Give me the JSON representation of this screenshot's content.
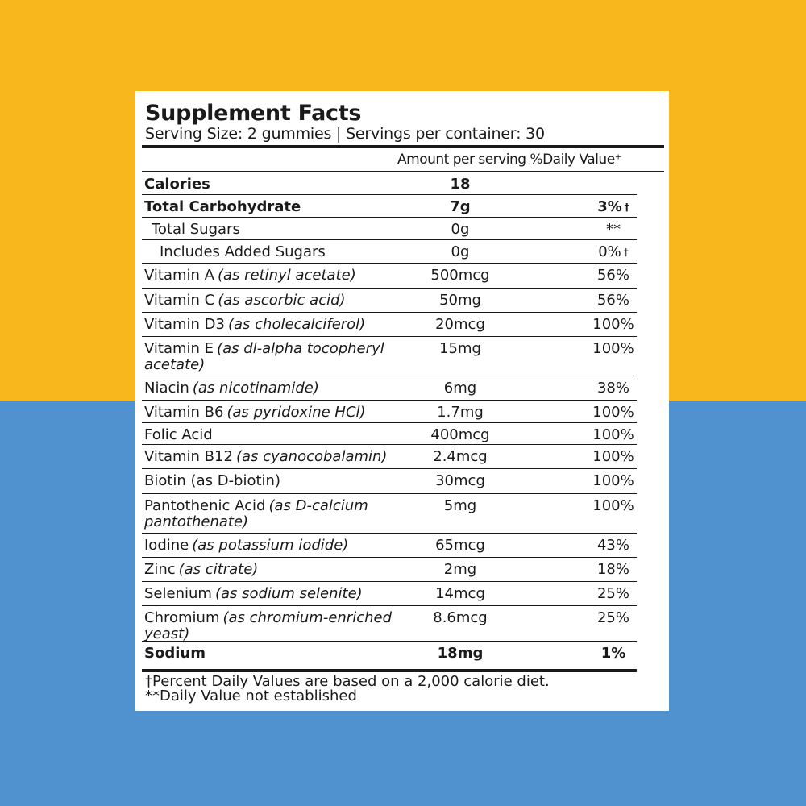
{
  "colors": {
    "top_background": "#F8B71C",
    "bottom_background": "#5092CF",
    "panel": "#FFFFFF",
    "text": "#1A1A1A"
  },
  "label": {
    "title": "Supplement Facts",
    "serving_line": "Serving Size: 2 gummies | Servings per container: 30",
    "column_header": "Amount per serving %Daily Value⁺",
    "rows": [
      {
        "name": "Calories",
        "note": "",
        "amount": "18",
        "dv": "",
        "dv_mark": "",
        "bold": true,
        "indent": 0,
        "lines": 1
      },
      {
        "name": "Total Carbohydrate",
        "note": "",
        "amount": "7g",
        "dv": "3%",
        "dv_mark": "†",
        "bold": true,
        "indent": 0,
        "lines": 1
      },
      {
        "name": "Total Sugars",
        "note": "",
        "amount": "0g",
        "dv": "**",
        "dv_mark": "",
        "bold": false,
        "indent": 1,
        "lines": 1
      },
      {
        "name": "Includes Added Sugars",
        "note": "",
        "amount": "0g",
        "dv": "0%",
        "dv_mark": "†",
        "bold": false,
        "indent": 2,
        "lines": 1
      },
      {
        "name": "Vitamin A",
        "note": "(as retinyl acetate)",
        "amount": "500mcg",
        "dv": "56%",
        "dv_mark": "",
        "bold": false,
        "indent": 0,
        "lines": 1
      },
      {
        "name": "Vitamin C",
        "note": "(as ascorbic acid)",
        "amount": "50mg",
        "dv": "56%",
        "dv_mark": "",
        "bold": false,
        "indent": 0,
        "lines": 1
      },
      {
        "name": "Vitamin D3",
        "note": "(as cholecalciferol)",
        "amount": "20mcg",
        "dv": "100%",
        "dv_mark": "",
        "bold": false,
        "indent": 0,
        "lines": 1
      },
      {
        "name": "Vitamin E",
        "note": "(as dl-alpha tocopheryl acetate)",
        "amount": "15mg",
        "dv": "100%",
        "dv_mark": "",
        "bold": false,
        "indent": 0,
        "lines": 2
      },
      {
        "name": "Niacin",
        "note": "(as nicotinamide)",
        "amount": "6mg",
        "dv": "38%",
        "dv_mark": "",
        "bold": false,
        "indent": 0,
        "lines": 1
      },
      {
        "name": "Vitamin B6",
        "note": "(as pyridoxine HCl)",
        "amount": "1.7mg",
        "dv": "100%",
        "dv_mark": "",
        "bold": false,
        "indent": 0,
        "lines": 1
      },
      {
        "name": "Folic Acid",
        "note": "",
        "amount": "400mcg",
        "dv": "100%",
        "dv_mark": "",
        "bold": false,
        "indent": 0,
        "lines": 1
      },
      {
        "name": "Vitamin B12",
        "note": "(as cyanocobalamin)",
        "amount": "2.4mcg",
        "dv": "100%",
        "dv_mark": "",
        "bold": false,
        "indent": 0,
        "lines": 1
      },
      {
        "name": "Biotin (as D-biotin)",
        "note": "",
        "amount": "30mcg",
        "dv": "100%",
        "dv_mark": "",
        "bold": false,
        "indent": 0,
        "lines": 1
      },
      {
        "name": "Pantothenic Acid",
        "note": "(as D-calcium pantothenate)",
        "amount": "5mg",
        "dv": "100%",
        "dv_mark": "",
        "bold": false,
        "indent": 0,
        "lines": 2
      },
      {
        "name": "Iodine",
        "note": "(as potassium iodide)",
        "amount": "65mcg",
        "dv": "43%",
        "dv_mark": "",
        "bold": false,
        "indent": 0,
        "lines": 1
      },
      {
        "name": "Zinc",
        "note": "(as citrate)",
        "amount": "2mg",
        "dv": "18%",
        "dv_mark": "",
        "bold": false,
        "indent": 0,
        "lines": 1
      },
      {
        "name": "Selenium",
        "note": "(as sodium selenite)",
        "amount": "14mcg",
        "dv": "25%",
        "dv_mark": "",
        "bold": false,
        "indent": 0,
        "lines": 1
      },
      {
        "name": "Chromium",
        "note": "(as chromium-enriched yeast)",
        "amount": "8.6mcg",
        "dv": "25%",
        "dv_mark": "",
        "bold": false,
        "indent": 0,
        "lines": 2
      },
      {
        "name": "Sodium",
        "note": "",
        "amount": "18mg",
        "dv": "1%",
        "dv_mark": "",
        "bold": true,
        "indent": 0,
        "lines": 1
      }
    ],
    "footnote_1": "†Percent Daily Values are based on a 2,000 calorie diet.",
    "footnote_2": "**Daily Value not established"
  }
}
